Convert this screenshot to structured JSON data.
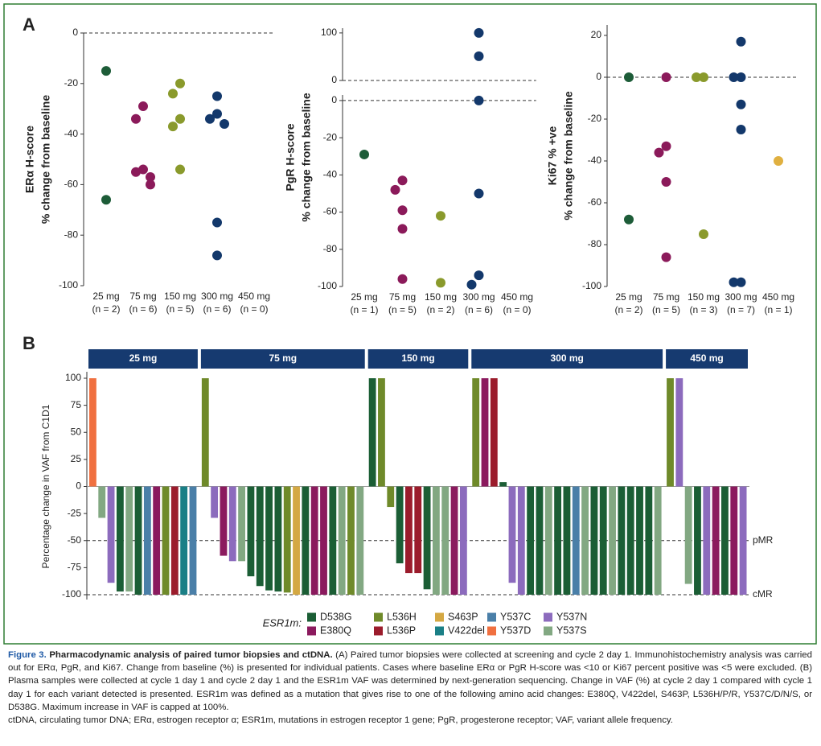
{
  "panel_labels": [
    "A",
    "B"
  ],
  "chart_data": [
    {
      "type": "scatter",
      "ylabel": [
        "ERα H-score",
        "% change from baseline"
      ],
      "categories": [
        "25 mg",
        "75 mg",
        "150 mg",
        "300 mg",
        "450 mg"
      ],
      "category_counts": [
        "(n = 2)",
        "(n = 6)",
        "(n = 5)",
        "(n = 6)",
        "(n = 0)"
      ],
      "colors": [
        "#1d5c38",
        "#8b1a5a",
        "#8a9a2c",
        "#13386b",
        "#e0b040"
      ],
      "values": [
        [
          -15,
          -66
        ],
        [
          -29,
          -34,
          -54,
          -55,
          -57,
          -60
        ],
        [
          -20,
          -24,
          -34,
          -37,
          -54
        ],
        [
          -25,
          -32,
          -34,
          -36,
          -75,
          -88
        ],
        []
      ],
      "ylim": [
        -100,
        0
      ],
      "yticks": [
        -100,
        -80,
        -60,
        -40,
        -20,
        0
      ],
      "hline": 0
    },
    {
      "type": "scatter",
      "ylabel": [
        "PgR H-score",
        "% change from baseline"
      ],
      "categories": [
        "25 mg",
        "75 mg",
        "150 mg",
        "300 mg",
        "450 mg"
      ],
      "category_counts": [
        "(n = 1)",
        "(n = 5)",
        "(n = 2)",
        "(n = 6)",
        "(n = 0)"
      ],
      "colors": [
        "#1d5c38",
        "#8b1a5a",
        "#8a9a2c",
        "#13386b",
        "#e0b040"
      ],
      "values": [
        [
          -29
        ],
        [
          -43,
          -48,
          -59,
          -69,
          -96
        ],
        [
          -62,
          -98
        ],
        [
          100,
          51,
          0,
          -50,
          -94,
          -99
        ],
        []
      ],
      "segments": [
        {
          "ylim": [
            0,
            110
          ],
          "yticks": [
            0,
            100
          ]
        },
        {
          "ylim": [
            -100,
            3
          ],
          "yticks": [
            -100,
            -80,
            -60,
            -40,
            -20,
            0
          ]
        }
      ],
      "hline": 0
    },
    {
      "type": "scatter",
      "ylabel": [
        "Ki67 % +ve",
        "% change from baseline"
      ],
      "categories": [
        "25 mg",
        "75 mg",
        "150 mg",
        "300 mg",
        "450 mg"
      ],
      "category_counts": [
        "(n = 2)",
        "(n = 5)",
        "(n = 3)",
        "(n = 7)",
        "(n = 1)"
      ],
      "colors": [
        "#1d5c38",
        "#8b1a5a",
        "#8a9a2c",
        "#13386b",
        "#e0b040"
      ],
      "values": [
        [
          0,
          -68
        ],
        [
          0,
          -33,
          -36,
          -50,
          -86
        ],
        [
          0,
          0,
          -75
        ],
        [
          17,
          0,
          0,
          -13,
          -25,
          -98,
          -98
        ],
        [
          -40
        ]
      ],
      "ylim": [
        -100,
        25
      ],
      "yticks": [
        -100,
        -80,
        -60,
        -40,
        -20,
        0,
        20
      ],
      "hline": 0
    },
    {
      "type": "waterfall",
      "ylabel": "Percentage change in VAF from C1D1",
      "ylim": [
        -100,
        100
      ],
      "yticks": [
        -100,
        -75,
        -50,
        -25,
        0,
        25,
        50,
        75,
        100
      ],
      "ref_lines": [
        {
          "value": -50,
          "label": "pMR"
        },
        {
          "value": -100,
          "label": "cMR"
        }
      ],
      "header_color": "#163a70",
      "groups": [
        {
          "name": "25 mg",
          "values": [
            100,
            -29,
            -89,
            -97,
            -97,
            -100,
            -100,
            -100,
            -100,
            -100,
            -100,
            -100
          ],
          "variants": [
            "Y537D",
            "Y537S",
            "Y537N",
            "D538G",
            "Y537S",
            "D538G",
            "Y537C",
            "E380Q",
            "L536H",
            "L536P",
            "V422del",
            "Y537C"
          ]
        },
        {
          "name": "75 mg",
          "values": [
            100,
            -29,
            -64,
            -69,
            -69,
            -83,
            -92,
            -96,
            -97,
            -98,
            -100,
            -100,
            -100,
            -100,
            -100,
            -100,
            -100,
            -100
          ],
          "variants": [
            "L536H",
            "Y537N",
            "E380Q",
            "Y537N",
            "Y537S",
            "D538G",
            "D538G",
            "D538G",
            "D538G",
            "L536H",
            "S463P",
            "D538G",
            "E380Q",
            "E380Q",
            "D538G",
            "Y537S",
            "L536H",
            "Y537S"
          ]
        },
        {
          "name": "150 mg",
          "values": [
            100,
            100,
            -19,
            -71,
            -80,
            -80,
            -95,
            -100,
            -100,
            -100,
            -100
          ],
          "variants": [
            "D538G",
            "L536H",
            "L536H",
            "D538G",
            "L536P",
            "L536P",
            "D538G",
            "Y537S",
            "Y537S",
            "E380Q",
            "Y537N"
          ]
        },
        {
          "name": "300 mg",
          "values": [
            100,
            100,
            100,
            4,
            -89,
            -100,
            -100,
            -100,
            -100,
            -100,
            -100,
            -100,
            -100,
            -100,
            -100,
            -100,
            -100,
            -100,
            -100,
            -100,
            -100
          ],
          "variants": [
            "L536H",
            "E380Q",
            "L536P",
            "D538G",
            "Y537N",
            "Y537N",
            "D538G",
            "D538G",
            "Y537S",
            "D538G",
            "D538G",
            "Y537C",
            "Y537S",
            "D538G",
            "D538G",
            "Y537S",
            "D538G",
            "D538G",
            "D538G",
            "D538G",
            "Y537S"
          ]
        },
        {
          "name": "450 mg",
          "values": [
            100,
            100,
            -90,
            -100,
            -100,
            -100,
            -100,
            -100,
            -100
          ],
          "variants": [
            "L536H",
            "Y537N",
            "Y537S",
            "D538G",
            "Y537N",
            "E380Q",
            "D538G",
            "E380Q",
            "Y537N"
          ]
        }
      ],
      "legend_title": "ESR1m:",
      "legend": [
        {
          "name": "D538G",
          "color": "#1b5e35"
        },
        {
          "name": "E380Q",
          "color": "#8b1a5e"
        },
        {
          "name": "L536H",
          "color": "#6f8a2a"
        },
        {
          "name": "L536P",
          "color": "#9b1c2c"
        },
        {
          "name": "S463P",
          "color": "#d4a843"
        },
        {
          "name": "V422del",
          "color": "#1a7f86"
        },
        {
          "name": "Y537C",
          "color": "#4a7fa8"
        },
        {
          "name": "Y537D",
          "color": "#f07040"
        },
        {
          "name": "Y537N",
          "color": "#8c6bbd"
        },
        {
          "name": "Y537S",
          "color": "#82a882"
        }
      ]
    }
  ],
  "caption": {
    "figure_label": "Figure 3.",
    "title": "Pharmacodynamic analysis of paired tumor biopsies and ctDNA.",
    "body": "(A) Paired tumor biopsies were collected at screening and cycle 2 day 1. Immunohistochemistry analysis was carried out for ERα, PgR, and Ki67. Change from baseline (%) is presented for individual patients. Cases where baseline ERα or PgR H-score was <10 or Ki67 percent positive was <5 were excluded. (B) Plasma samples were collected at cycle 1 day 1 and cycle 2 day 1 and the ESR1m VAF was determined by next-generation sequencing. Change in VAF (%) at cycle 2 day 1 compared with cycle 1 day 1 for each variant detected is presented. ESR1m was defined as a mutation that gives rise to one of the following amino acid changes: E380Q, V422del, S463P, L536H/P/R, Y537C/D/N/S, or D538G. Maximum increase in VAF is capped at 100%.",
    "abbreviations": "ctDNA, circulating tumor DNA; ERα, estrogen receptor α; ESR1m, mutations in estrogen receptor 1 gene; PgR, progesterone receptor; VAF, variant allele frequency."
  }
}
